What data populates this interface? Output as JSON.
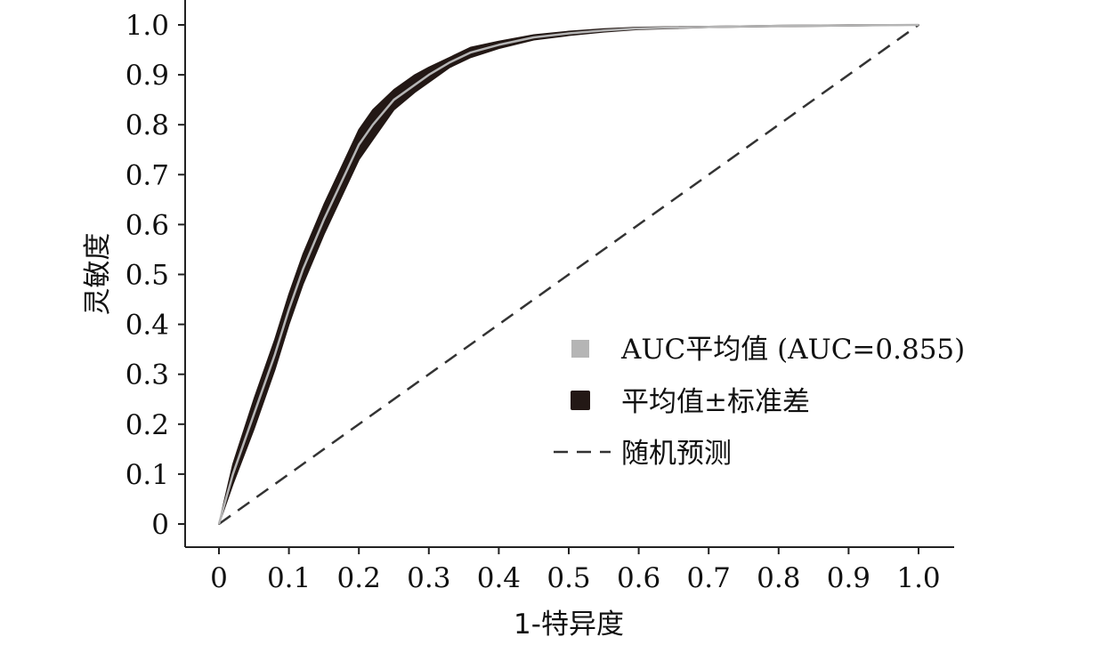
{
  "chart_data": {
    "type": "line",
    "xlabel": "1-特异度",
    "ylabel": "灵敏度",
    "xlim": [
      0,
      1
    ],
    "ylim": [
      0,
      1
    ],
    "x_ticks": [
      "0",
      "0.1",
      "0.2",
      "0.3",
      "0.4",
      "0.5",
      "0.6",
      "0.7",
      "0.8",
      "0.9",
      "1.0"
    ],
    "y_ticks": [
      "0",
      "0.1",
      "0.2",
      "0.3",
      "0.4",
      "0.5",
      "0.6",
      "0.7",
      "0.8",
      "0.9",
      "1.0"
    ],
    "legend_position": "right",
    "series": [
      {
        "name": "AUC平均值 (AUC=0.855)",
        "color": "#b5b5b5",
        "x": [
          0,
          0.02,
          0.05,
          0.08,
          0.1,
          0.12,
          0.15,
          0.18,
          0.2,
          0.22,
          0.25,
          0.28,
          0.3,
          0.33,
          0.36,
          0.4,
          0.45,
          0.5,
          0.55,
          0.6,
          0.7,
          0.8,
          0.9,
          1.0
        ],
        "y": [
          0,
          0.1,
          0.22,
          0.34,
          0.43,
          0.51,
          0.61,
          0.7,
          0.76,
          0.8,
          0.85,
          0.88,
          0.9,
          0.925,
          0.945,
          0.96,
          0.975,
          0.983,
          0.989,
          0.993,
          0.996,
          0.998,
          0.999,
          1.0
        ]
      },
      {
        "name": "平均值±标准差",
        "color": "#231815",
        "x": [
          0,
          0.02,
          0.05,
          0.08,
          0.1,
          0.12,
          0.15,
          0.18,
          0.2,
          0.22,
          0.25,
          0.28,
          0.3,
          0.33,
          0.36,
          0.4,
          0.45,
          0.5,
          0.55,
          0.6,
          0.7,
          0.8,
          0.9,
          1.0
        ],
        "upper": [
          0,
          0.12,
          0.25,
          0.37,
          0.46,
          0.54,
          0.64,
          0.73,
          0.79,
          0.83,
          0.87,
          0.9,
          0.915,
          0.935,
          0.955,
          0.967,
          0.98,
          0.987,
          0.992,
          0.995,
          0.997,
          0.999,
          1.0,
          1.0
        ],
        "lower": [
          0,
          0.08,
          0.19,
          0.31,
          0.4,
          0.48,
          0.58,
          0.67,
          0.73,
          0.77,
          0.83,
          0.865,
          0.885,
          0.915,
          0.935,
          0.953,
          0.97,
          0.979,
          0.986,
          0.991,
          0.995,
          0.997,
          0.998,
          1.0
        ]
      },
      {
        "name": "随机预测",
        "color": "#333333",
        "style": "dashed",
        "x": [
          0,
          1
        ],
        "y": [
          0,
          1
        ]
      }
    ]
  }
}
